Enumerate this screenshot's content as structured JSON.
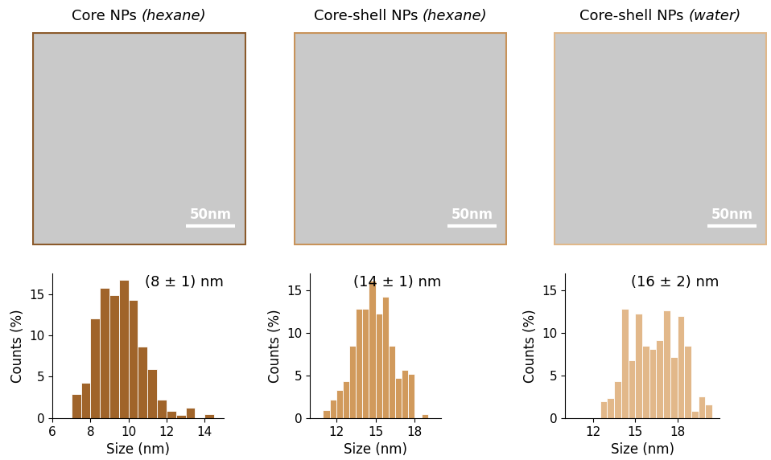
{
  "images": [
    {
      "title": "Core NPs",
      "solvent": "(hexane)",
      "scale_bar": "50nm",
      "color": "#8b5a2b"
    },
    {
      "title": "Core-shell NPs",
      "solvent": "(hexane)",
      "scale_bar": "50nm",
      "color": "#c8935a"
    },
    {
      "title": "Core-shell NPs",
      "solvent": "(water)",
      "scale_bar": "50nm",
      "color": "#e0b88a"
    }
  ],
  "chart_data": [
    {
      "type": "histogram",
      "annotation": "(8 ± 1) nm",
      "x_label": "Size (nm)",
      "y_label": "Counts (%)",
      "bins": [
        7.0,
        7.5,
        8.0,
        8.5,
        9.0,
        9.5,
        10.0,
        10.5,
        11.0,
        11.5,
        12.0,
        12.5,
        13.0,
        13.5,
        14.0,
        14.5
      ],
      "counts": [
        2.9,
        4.3,
        12.0,
        15.7,
        14.9,
        16.7,
        14.3,
        8.6,
        5.9,
        2.2,
        0.9,
        0.4,
        1.3,
        0,
        0.5
      ],
      "color": "#a0642a",
      "xlim": [
        6,
        15
      ],
      "xticks": [
        6,
        8,
        10,
        12,
        14
      ],
      "ylim": [
        0,
        17.5
      ],
      "yticks": [
        0,
        5,
        10,
        15
      ]
    },
    {
      "type": "histogram",
      "annotation": "(14 ± 1) nm",
      "x_label": "Size (nm)",
      "y_label": "Counts (%)",
      "bins": [
        11.0,
        11.5,
        12.0,
        12.5,
        13.0,
        13.5,
        14.0,
        14.5,
        15.0,
        15.5,
        16.0,
        16.5,
        17.0,
        17.5,
        18.0,
        18.5,
        19.0
      ],
      "counts": [
        0.9,
        2.2,
        3.3,
        4.3,
        8.5,
        12.8,
        12.8,
        16.1,
        12.3,
        14.2,
        8.5,
        4.7,
        5.7,
        5.2,
        0,
        0.5
      ],
      "color": "#d19a5c",
      "xlim": [
        10,
        20
      ],
      "xticks": [
        12,
        15,
        18
      ],
      "ylim": [
        0,
        17
      ],
      "yticks": [
        0,
        5,
        10,
        15
      ]
    },
    {
      "type": "histogram",
      "annotation": "(16 ± 2) nm",
      "x_label": "Size (nm)",
      "y_label": "Counts (%)",
      "bins": [
        12.5,
        13.0,
        13.5,
        14.0,
        14.5,
        15.0,
        15.5,
        16.0,
        16.5,
        17.0,
        17.5,
        18.0,
        18.5,
        19.0,
        19.5,
        20.0,
        20.5
      ],
      "counts": [
        2.0,
        2.4,
        4.3,
        12.8,
        6.8,
        12.3,
        8.5,
        8.1,
        9.1,
        12.6,
        7.2,
        12.0,
        8.5,
        0.8,
        2.5,
        1.6
      ],
      "color": "#e2b88a",
      "xlim": [
        10,
        21
      ],
      "xticks": [
        12,
        15,
        18
      ],
      "ylim": [
        0,
        17
      ],
      "yticks": [
        0,
        5,
        10,
        15
      ]
    }
  ]
}
